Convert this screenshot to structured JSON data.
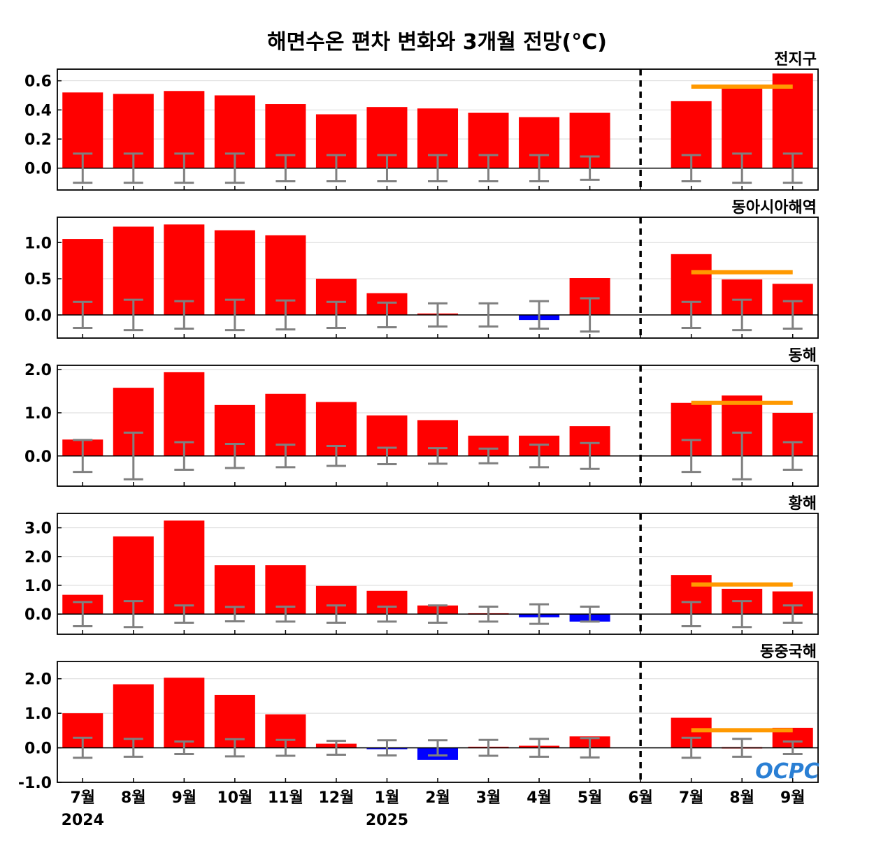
{
  "title": "해면수온 편차 변화와 3개월 전망(°C)",
  "watermark": "OCPC",
  "colors": {
    "positive": "#ff0000",
    "negative": "#0000ff",
    "forecast_line": "#ff9900",
    "error_bar": "#808080",
    "divider": "#000000"
  },
  "x_labels": [
    "7월",
    "8월",
    "9월",
    "10월",
    "11월",
    "12월",
    "1월",
    "2월",
    "3월",
    "4월",
    "5월",
    "6월",
    "7월",
    "8월",
    "9월"
  ],
  "year_labels": [
    {
      "index": 0,
      "text": "2024"
    },
    {
      "index": 6,
      "text": "2025"
    }
  ],
  "chart_data": [
    {
      "type": "bar",
      "title": "전지구",
      "ylim": [
        -0.15,
        0.68
      ],
      "yticks": [
        0.0,
        0.2,
        0.4,
        0.6
      ],
      "tick_format": 1,
      "values": [
        0.52,
        0.51,
        0.53,
        0.5,
        0.44,
        0.37,
        0.42,
        0.41,
        0.38,
        0.35,
        0.38,
        0.0,
        0.46,
        0.56,
        0.65
      ],
      "error": [
        0.1,
        0.1,
        0.1,
        0.1,
        0.09,
        0.09,
        0.09,
        0.09,
        0.09,
        0.09,
        0.08,
        null,
        0.09,
        0.1,
        0.1
      ],
      "forecast_mean": 0.56,
      "grid": true
    },
    {
      "type": "bar",
      "title": "동아시아해역",
      "ylim": [
        -0.32,
        1.35
      ],
      "yticks": [
        0.0,
        0.5,
        1.0
      ],
      "tick_format": 1,
      "values": [
        1.05,
        1.22,
        1.25,
        1.17,
        1.1,
        0.5,
        0.3,
        0.02,
        0.0,
        -0.07,
        0.51,
        0.0,
        0.84,
        0.49,
        0.43
      ],
      "error": [
        0.18,
        0.21,
        0.19,
        0.21,
        0.2,
        0.18,
        0.17,
        0.16,
        0.16,
        0.19,
        0.23,
        null,
        0.18,
        0.21,
        0.19
      ],
      "forecast_mean": 0.59,
      "grid": true
    },
    {
      "type": "bar",
      "title": "동해",
      "ylim": [
        -0.7,
        2.1
      ],
      "yticks": [
        0.0,
        1.0,
        2.0
      ],
      "tick_format": 1,
      "values": [
        0.38,
        1.58,
        1.94,
        1.18,
        1.44,
        1.25,
        0.94,
        0.83,
        0.47,
        0.47,
        0.69,
        0.0,
        1.23,
        1.4,
        1.0
      ],
      "error": [
        0.37,
        0.54,
        0.32,
        0.28,
        0.26,
        0.23,
        0.19,
        0.18,
        0.17,
        0.26,
        0.3,
        null,
        0.37,
        0.54,
        0.32
      ],
      "forecast_mean": 1.23,
      "grid": true
    },
    {
      "type": "bar",
      "title": "황해",
      "ylim": [
        -0.7,
        3.5
      ],
      "yticks": [
        0.0,
        1.0,
        2.0,
        3.0
      ],
      "tick_format": 1,
      "values": [
        0.67,
        2.7,
        3.25,
        1.7,
        1.7,
        0.98,
        0.81,
        0.3,
        0.03,
        -0.11,
        -0.26,
        0.0,
        1.36,
        0.88,
        0.79
      ],
      "error": [
        0.42,
        0.45,
        0.3,
        0.25,
        0.26,
        0.3,
        0.26,
        0.3,
        0.26,
        0.34,
        0.26,
        null,
        0.42,
        0.45,
        0.3
      ],
      "forecast_mean": 1.03,
      "grid": true
    },
    {
      "type": "bar",
      "title": "동중국해",
      "ylim": [
        -1.0,
        2.5
      ],
      "yticks": [
        -1.0,
        0.0,
        1.0,
        2.0
      ],
      "tick_format": 1,
      "values": [
        1.0,
        1.84,
        2.03,
        1.53,
        0.97,
        0.12,
        -0.04,
        -0.35,
        0.03,
        0.06,
        0.33,
        0.0,
        0.87,
        0.02,
        0.58
      ],
      "error": [
        0.29,
        0.26,
        0.18,
        0.25,
        0.23,
        0.2,
        0.22,
        0.22,
        0.23,
        0.26,
        0.28,
        null,
        0.29,
        0.26,
        0.18
      ],
      "forecast_mean": 0.51,
      "grid": true
    }
  ]
}
